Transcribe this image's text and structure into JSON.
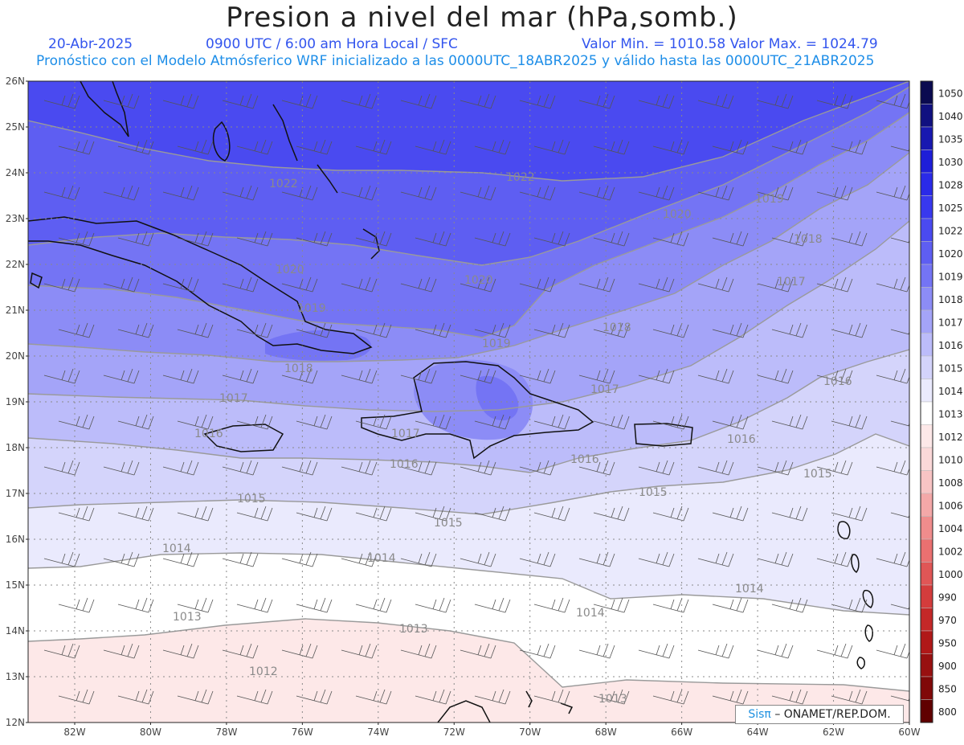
{
  "title": "Presion a nivel del mar (hPa,somb.)",
  "header": {
    "date": "20-Abr-2025",
    "time": "0900 UTC / 6:00 am Hora Local / SFC",
    "range": "Valor Min. = 1010.58  Valor Max. = 1024.79",
    "model": "Pronóstico con el Modelo Atmósferico WRF inicializado a las 0000UTC_18ABR2025 y válido hasta las  0000UTC_21ABR2025"
  },
  "axes": {
    "lat": [
      "26N",
      "25N",
      "24N",
      "23N",
      "22N",
      "21N",
      "20N",
      "19N",
      "18N",
      "17N",
      "16N",
      "15N",
      "14N",
      "13N",
      "12N"
    ],
    "lon": [
      "82W",
      "80W",
      "78W",
      "76W",
      "74W",
      "72W",
      "70W",
      "68W",
      "66W",
      "64W",
      "62W",
      "60W"
    ]
  },
  "colorbar": {
    "levels": [
      "1050",
      "1040",
      "1035",
      "1030",
      "1028",
      "1025",
      "1022",
      "1020",
      "1019",
      "1018",
      "1017",
      "1016",
      "1015",
      "1014",
      "1013",
      "1012",
      "1010",
      "1008",
      "1006",
      "1004",
      "1002",
      "1000",
      "990",
      "970",
      "950",
      "900",
      "850",
      "800"
    ],
    "colors": [
      "#0a0a50",
      "#101080",
      "#1818b0",
      "#1e1ed8",
      "#2a2ae8",
      "#3838ee",
      "#4a4af0",
      "#5e5ef2",
      "#7474f4",
      "#8c8cf6",
      "#a4a4f8",
      "#bcbcfa",
      "#d4d4fb",
      "#eaeafd",
      "#ffffff",
      "#fde8e8",
      "#fbd8d8",
      "#f8c4c4",
      "#f4a8a8",
      "#f08c8c",
      "#ea7070",
      "#e05656",
      "#d43c3c",
      "#c42828",
      "#b01818",
      "#981010",
      "#800808",
      "#600000"
    ]
  },
  "contour_labels": [
    "1022",
    "1022",
    "1020",
    "1020",
    "1020",
    "1019",
    "1019",
    "1019",
    "1018",
    "1018",
    "1018",
    "1017",
    "1017",
    "1017",
    "1017",
    "1016",
    "1016",
    "1016",
    "1016",
    "1016",
    "1015",
    "1015",
    "1015",
    "1015",
    "1014",
    "1014",
    "1014",
    "1014",
    "1013",
    "1013",
    "1013",
    "1012"
  ],
  "credit": {
    "logo": "Sisπ",
    "text": "– ONAMET/REP.DOM."
  }
}
